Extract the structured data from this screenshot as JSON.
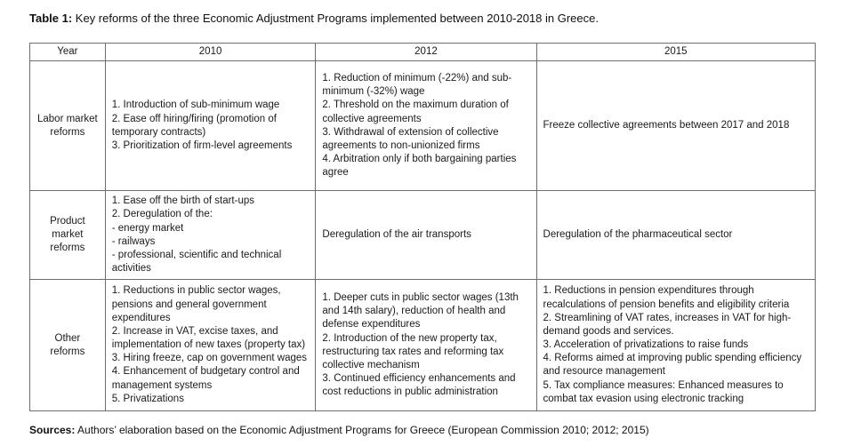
{
  "caption": {
    "label": "Table 1:",
    "text": " Key reforms of the three Economic Adjustment Programs implemented between 2010-2018 in Greece."
  },
  "table": {
    "headers": [
      "Year",
      "2010",
      "2012",
      "2015"
    ],
    "rows": [
      {
        "category": "Labor market reforms",
        "cells": [
          "1. Introduction of sub-minimum wage\n2. Ease off hiring/firing (promotion of temporary contracts)\n3. Prioritization of firm-level agreements",
          "1. Reduction of minimum (-22%) and sub-minimum (-32%) wage\n2. Threshold on the maximum duration of collective agreements\n3. Withdrawal of extension of collective agreements to non-unionized firms\n4. Arbitration only if both bargaining parties agree",
          "Freeze collective agreements between 2017 and 2018"
        ]
      },
      {
        "category": "Product market reforms",
        "cells": [
          "1. Ease off the birth of start-ups\n2. Deregulation of the:\n- energy market\n- railways\n- professional, scientific and technical activities",
          "Deregulation of the air transports",
          "Deregulation of the pharmaceutical sector"
        ]
      },
      {
        "category": "Other reforms",
        "cells": [
          "1. Reductions in public sector wages, pensions and general government expenditures\n2. Increase in VAT, excise taxes, and implementation of new taxes (property tax)\n3. Hiring freeze, cap on government wages\n4. Enhancement of budgetary control and management systems\n5. Privatizations",
          "1. Deeper cuts in public sector wages (13th and 14th salary), reduction of health and defense expenditures\n2. Introduction of the new property tax, restructuring tax rates and reforming tax collective mechanism\n3. Continued efficiency enhancements and cost reductions in public administration",
          "1. Reductions in pension expenditures through recalculations of pension benefits and eligibility criteria\n2. Streamlining of VAT rates, increases in VAT for high-demand goods and services.\n3. Acceleration of privatizations to raise funds\n4. Reforms aimed at improving public spending efficiency and resource management\n5. Tax compliance measures: Enhanced measures to combat tax evasion using electronic tracking"
        ]
      }
    ]
  },
  "sources": {
    "label": "Sources:",
    "text": " Authors’ elaboration based on the Economic Adjustment Programs for Greece (European Commission 2010; 2012; 2015)"
  }
}
